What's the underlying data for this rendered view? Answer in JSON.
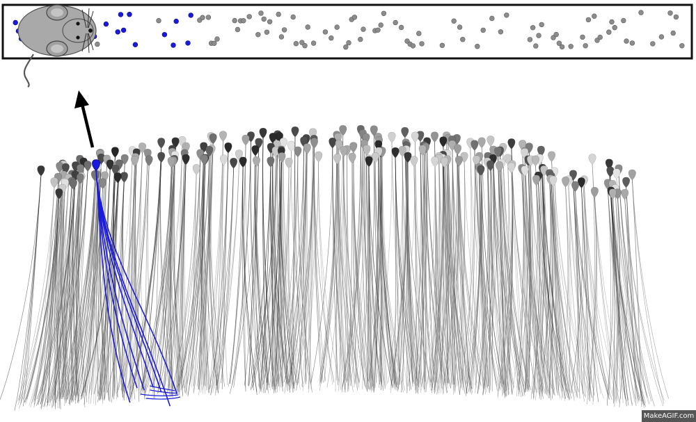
{
  "watermark": {
    "text": "MakeAGIF.com"
  },
  "colors": {
    "active": "#1a1adc",
    "track_border": "#111111",
    "inactive_dot": "#8c8c8c",
    "mouse_body": "#a9a9a9"
  },
  "icons": {
    "mouse": "mouse-icon",
    "arrow": "arrow-up-icon"
  }
}
